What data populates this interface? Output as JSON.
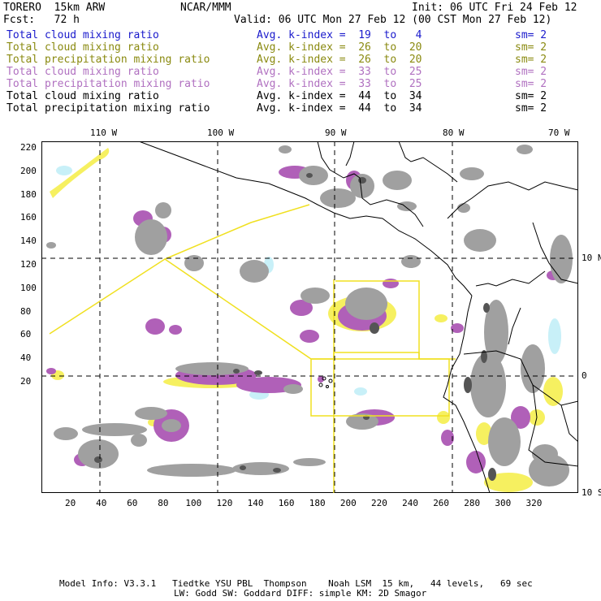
{
  "header": {
    "model": "TORERO  15km ARW",
    "org": "NCAR/MMM",
    "init": "Init: 06 UTC Fri 24 Feb 12",
    "fcst": "Fcst:   72 h",
    "valid": "Valid: 06 UTC Mon 27 Feb 12 (00 CST Mon 27 Feb 12)"
  },
  "legend": [
    {
      "field": "Total cloud mixing ratio",
      "kindex": "Avg. k-index =  19  to   4",
      "sm": "sm= 2",
      "color": "#1a1acc"
    },
    {
      "field": "Total cloud mixing ratio",
      "kindex": "Avg. k-index =  26  to  20",
      "sm": "sm= 2",
      "color": "#8a8a10"
    },
    {
      "field": "Total precipitation mixing ratio",
      "kindex": "Avg. k-index =  26  to  20",
      "sm": "sm= 2",
      "color": "#8a8a10"
    },
    {
      "field": "Total cloud mixing ratio",
      "kindex": "Avg. k-index =  33  to  25",
      "sm": "sm= 2",
      "color": "#b070c0"
    },
    {
      "field": "Total precipitation mixing ratio",
      "kindex": "Avg. k-index =  33  to  25",
      "sm": "sm= 2",
      "color": "#b070c0"
    },
    {
      "field": "Total cloud mixing ratio",
      "kindex": "Avg. k-index =  44  to  34",
      "sm": "sm= 2",
      "color": "#000000"
    },
    {
      "field": "Total precipitation mixing ratio",
      "kindex": "Avg. k-index =  44  to  34",
      "sm": "sm= 2",
      "color": "#000000"
    }
  ],
  "axes": {
    "top_lon": [
      "110 W",
      "100 W",
      "90 W",
      "80 W",
      "70 W"
    ],
    "right_lat": [
      "10 N",
      "0",
      "10 S"
    ],
    "left_y": [
      "220",
      "200",
      "180",
      "160",
      "140",
      "120",
      "100",
      "80",
      "60",
      "40",
      "20"
    ],
    "bottom_x": [
      "20",
      "40",
      "60",
      "80",
      "100",
      "120",
      "140",
      "160",
      "180",
      "200",
      "220",
      "240",
      "260",
      "280",
      "300",
      "320"
    ]
  },
  "footer": {
    "line1": "Model Info: V3.3.1   Tiedtke YSU PBL  Thompson    Noah LSM  15 km,   44 levels,   69 sec",
    "line2": "LW: Godd SW: Goddard DIFF: simple KM: 2D Smagor"
  },
  "colors": {
    "cloud_gray": "#a0a0a0",
    "cloud_dark": "#555555",
    "precip_magenta": "#b060b8",
    "cloud_yellow": "#f6f060",
    "cloud_cyan": "#c8f0f8",
    "box_yellow": "#f0e020"
  }
}
